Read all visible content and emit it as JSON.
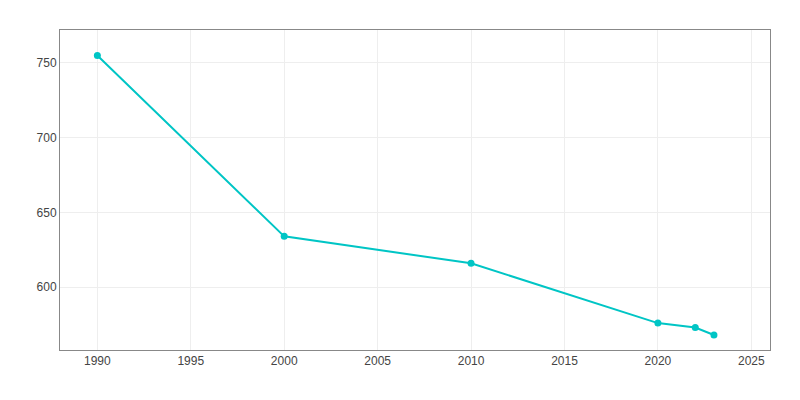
{
  "chart_data": {
    "type": "line",
    "x": [
      1990,
      2000,
      2010,
      2020,
      2022,
      2023
    ],
    "values": [
      755,
      634,
      616,
      576,
      573,
      568
    ],
    "color": "#00C5C5",
    "marker": "circle",
    "xlim": [
      1988,
      2026
    ],
    "xticks": [
      1990,
      1995,
      2000,
      2005,
      2010,
      2015,
      2020,
      2025
    ],
    "ylim": [
      558,
      772
    ],
    "yticks": [
      600,
      650,
      700,
      750
    ],
    "grid": true
  }
}
